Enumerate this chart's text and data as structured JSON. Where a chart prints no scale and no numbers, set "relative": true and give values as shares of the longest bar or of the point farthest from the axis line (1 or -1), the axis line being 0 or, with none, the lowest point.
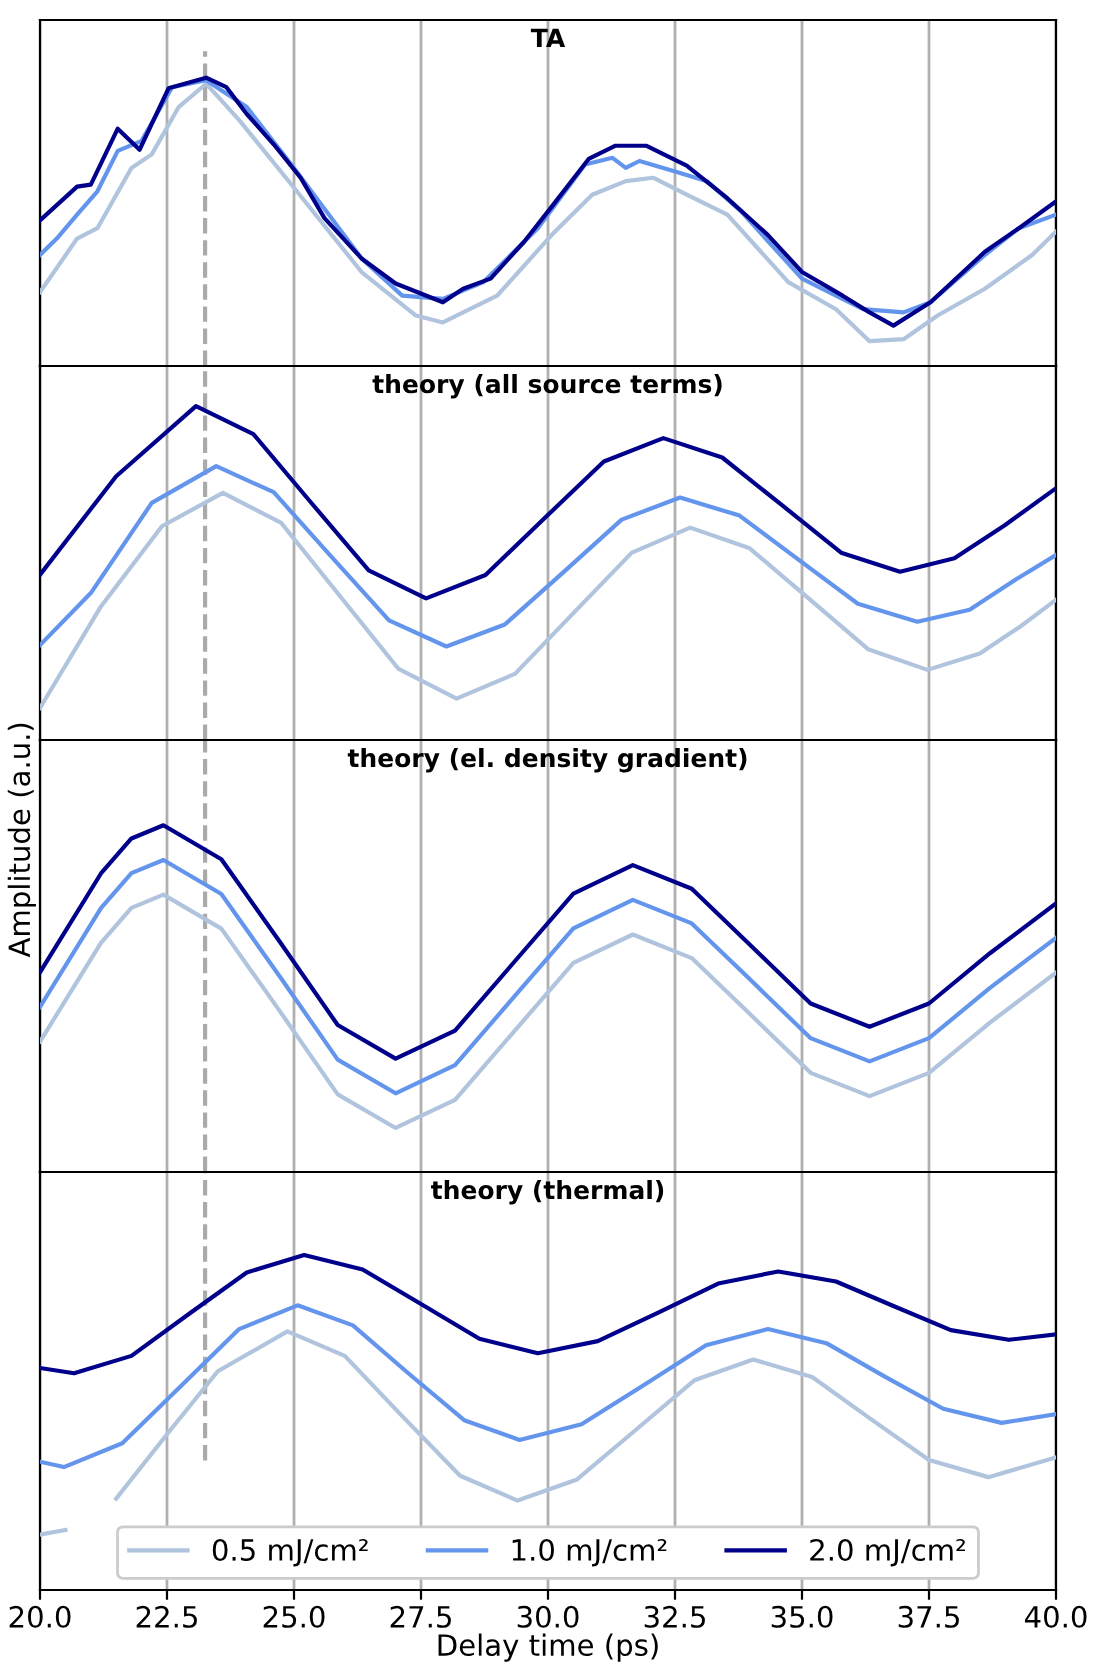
{
  "chart_data": [
    {
      "type": "line",
      "title": "TA",
      "relative": true,
      "xlim": [
        20,
        40
      ],
      "xticks": [
        {
          "value": 20,
          "label": null
        },
        {
          "value": 22.5,
          "label": null
        },
        {
          "value": 25,
          "label": null
        },
        {
          "value": 27.5,
          "label": null
        },
        {
          "value": 30,
          "label": null
        },
        {
          "value": 32.5,
          "label": null
        },
        {
          "value": 35,
          "label": null
        },
        {
          "value": 37.5,
          "label": null
        },
        {
          "value": 40,
          "label": null
        }
      ],
      "grid": "x",
      "tick_labels": false,
      "legend": false,
      "ref_lines": [
        {
          "axis": "x",
          "value": 23.25,
          "color": "#aaaaaa",
          "line_style": "dashed"
        }
      ],
      "series": [
        {
          "color": "#b0c4de",
          "x": [
            20.0,
            20.73,
            21.13,
            21.8,
            22.2,
            22.73,
            23.27,
            23.93,
            25.0,
            26.33,
            27.4,
            27.93,
            29.0,
            30.07,
            30.87,
            31.53,
            32.07,
            32.73,
            33.53,
            34.73,
            35.67,
            36.33,
            37.0,
            37.67,
            38.6,
            39.53,
            40.0
          ],
          "values": [
            0.256,
            0.442,
            0.478,
            0.687,
            0.734,
            0.898,
            0.979,
            0.851,
            0.618,
            0.326,
            0.175,
            0.151,
            0.244,
            0.454,
            0.594,
            0.641,
            0.653,
            0.594,
            0.525,
            0.291,
            0.197,
            0.086,
            0.093,
            0.175,
            0.268,
            0.385,
            0.466
          ]
        },
        {
          "color": "#6495ed",
          "x": [
            20.0,
            20.33,
            20.73,
            21.13,
            21.53,
            22.0,
            22.6,
            23.27,
            24.07,
            25.0,
            26.33,
            27.13,
            27.93,
            28.73,
            29.8,
            30.73,
            31.27,
            31.53,
            31.8,
            32.47,
            33.13,
            33.8,
            35.0,
            36.2,
            37.0,
            37.53,
            38.6,
            39.27,
            40.0
          ],
          "values": [
            0.385,
            0.442,
            0.525,
            0.606,
            0.746,
            0.781,
            0.967,
            0.991,
            0.898,
            0.687,
            0.373,
            0.244,
            0.233,
            0.291,
            0.478,
            0.699,
            0.722,
            0.687,
            0.711,
            0.676,
            0.641,
            0.536,
            0.303,
            0.197,
            0.186,
            0.221,
            0.385,
            0.478,
            0.525
          ]
        },
        {
          "color": "#00008b",
          "x": [
            20.0,
            20.73,
            21.0,
            21.53,
            21.96,
            22.53,
            23.27,
            23.67,
            24.07,
            24.6,
            25.13,
            25.6,
            26.33,
            27.0,
            27.93,
            28.33,
            28.87,
            29.53,
            30.07,
            30.8,
            31.33,
            31.93,
            32.73,
            33.53,
            34.33,
            35.0,
            35.8,
            36.33,
            36.8,
            37.53,
            38.6,
            39.27,
            40.0
          ],
          "values": [
            0.505,
            0.622,
            0.629,
            0.823,
            0.75,
            0.963,
            1.0,
            0.967,
            0.874,
            0.769,
            0.653,
            0.513,
            0.373,
            0.286,
            0.221,
            0.268,
            0.303,
            0.431,
            0.552,
            0.718,
            0.764,
            0.764,
            0.695,
            0.582,
            0.454,
            0.326,
            0.244,
            0.186,
            0.14,
            0.221,
            0.396,
            0.478,
            0.571
          ]
        }
      ]
    },
    {
      "type": "line",
      "title": "theory (all source terms)",
      "relative": true,
      "xlim": [
        20,
        40
      ],
      "xticks": [
        {
          "value": 20,
          "label": null
        },
        {
          "value": 22.5,
          "label": null
        },
        {
          "value": 25,
          "label": null
        },
        {
          "value": 27.5,
          "label": null
        },
        {
          "value": 30,
          "label": null
        },
        {
          "value": 32.5,
          "label": null
        },
        {
          "value": 35,
          "label": null
        },
        {
          "value": 37.5,
          "label": null
        },
        {
          "value": 40,
          "label": null
        }
      ],
      "grid": "x",
      "tick_labels": false,
      "legend": false,
      "ref_lines": [
        {
          "axis": "x",
          "value": 23.25,
          "color": "#aaaaaa",
          "line_style": "dashed"
        }
      ],
      "series": [
        {
          "color": "#b0c4de",
          "x": [
            20,
            21.2,
            22.4,
            23.6,
            24.75,
            25.9,
            27.05,
            28.2,
            29.35,
            30.5,
            31.65,
            32.8,
            33.97,
            35.13,
            36.3,
            37.47,
            38.5,
            39.3,
            40
          ],
          "values": [
            0.096,
            0.4,
            0.64,
            0.74,
            0.65,
            0.432,
            0.214,
            0.124,
            0.198,
            0.38,
            0.561,
            0.636,
            0.574,
            0.424,
            0.272,
            0.21,
            0.259,
            0.34,
            0.42
          ]
        },
        {
          "color": "#6495ed",
          "x": [
            20,
            21,
            22.2,
            23.47,
            24.6,
            25.73,
            26.87,
            28,
            29.15,
            30.3,
            31.45,
            32.6,
            33.77,
            34.93,
            36.1,
            37.27,
            38.3,
            39.2,
            40
          ],
          "values": [
            0.284,
            0.44,
            0.71,
            0.82,
            0.742,
            0.55,
            0.358,
            0.28,
            0.346,
            0.502,
            0.66,
            0.726,
            0.672,
            0.54,
            0.408,
            0.354,
            0.39,
            0.48,
            0.554
          ]
        },
        {
          "color": "#00008b",
          "x": [
            20,
            21.5,
            23.07,
            24.2,
            25.33,
            26.47,
            27.6,
            28.77,
            29.93,
            31.1,
            32.27,
            33.43,
            34.6,
            35.77,
            36.93,
            38,
            39,
            40
          ],
          "values": [
            0.495,
            0.79,
            1.0,
            0.916,
            0.712,
            0.508,
            0.424,
            0.494,
            0.664,
            0.834,
            0.904,
            0.846,
            0.704,
            0.561,
            0.504,
            0.544,
            0.644,
            0.754
          ]
        }
      ]
    },
    {
      "type": "line",
      "title": "theory (el. density gradient)",
      "ylabel": "Amplitude (a.u.)",
      "relative": true,
      "xlim": [
        20,
        40
      ],
      "xticks": [
        {
          "value": 20,
          "label": null
        },
        {
          "value": 22.5,
          "label": null
        },
        {
          "value": 25,
          "label": null
        },
        {
          "value": 27.5,
          "label": null
        },
        {
          "value": 30,
          "label": null
        },
        {
          "value": 32.5,
          "label": null
        },
        {
          "value": 35,
          "label": null
        },
        {
          "value": 37.5,
          "label": null
        },
        {
          "value": 40,
          "label": null
        }
      ],
      "grid": "x",
      "tick_labels": false,
      "legend": false,
      "ref_lines": [
        {
          "axis": "x",
          "value": 23.25,
          "color": "#aaaaaa",
          "line_style": "dashed"
        }
      ],
      "series": [
        {
          "color": "#b0c4de",
          "x": [
            20,
            21.2,
            21.8,
            22.43,
            23.57,
            24.72,
            25.86,
            27.0,
            28.17,
            29.33,
            30.5,
            31.67,
            32.83,
            34.0,
            35.17,
            36.33,
            37.5,
            38.7,
            40
          ],
          "values": [
            0.376,
            0.661,
            0.762,
            0.8,
            0.702,
            0.464,
            0.224,
            0.127,
            0.208,
            0.405,
            0.603,
            0.685,
            0.617,
            0.452,
            0.286,
            0.219,
            0.286,
            0.431,
            0.575
          ]
        },
        {
          "color": "#6495ed",
          "x": [
            20,
            21.2,
            21.8,
            22.43,
            23.57,
            24.72,
            25.86,
            27.0,
            28.17,
            29.33,
            30.5,
            31.67,
            32.83,
            34.0,
            35.17,
            36.33,
            37.5,
            38.7,
            40
          ],
          "values": [
            0.476,
            0.761,
            0.862,
            0.9,
            0.802,
            0.564,
            0.324,
            0.227,
            0.308,
            0.505,
            0.703,
            0.785,
            0.717,
            0.552,
            0.386,
            0.319,
            0.386,
            0.531,
            0.675
          ]
        },
        {
          "color": "#00008b",
          "x": [
            20,
            21.2,
            21.8,
            22.43,
            23.57,
            24.72,
            25.86,
            27.0,
            28.17,
            29.33,
            30.5,
            31.67,
            32.83,
            34.0,
            35.17,
            36.33,
            37.5,
            38.7,
            40
          ],
          "values": [
            0.576,
            0.861,
            0.962,
            1.0,
            0.902,
            0.664,
            0.424,
            0.327,
            0.408,
            0.605,
            0.803,
            0.885,
            0.817,
            0.652,
            0.486,
            0.419,
            0.486,
            0.631,
            0.775
          ]
        }
      ]
    },
    {
      "type": "line",
      "title": "theory (thermal)",
      "xlabel": "Delay time (ps)",
      "relative": true,
      "xlim": [
        20,
        40
      ],
      "xticks": [
        {
          "value": 20,
          "label": "20.0"
        },
        {
          "value": 22.5,
          "label": "22.5"
        },
        {
          "value": 25,
          "label": "25.0"
        },
        {
          "value": 27.5,
          "label": "27.5"
        },
        {
          "value": 30,
          "label": "30.0"
        },
        {
          "value": 32.5,
          "label": "32.5"
        },
        {
          "value": 35,
          "label": "35.0"
        },
        {
          "value": 37.5,
          "label": "37.5"
        },
        {
          "value": 40,
          "label": "40.0"
        }
      ],
      "grid": "x",
      "tick_labels": "x",
      "legend": "bottom",
      "ref_lines": [
        {
          "axis": "x",
          "value": 23.25,
          "color": "#aaaaaa",
          "line_style": "dashed"
        }
      ],
      "series": [
        {
          "name": "0.5 mJ/cm²",
          "color": "#b0c4de",
          "x": [
            20,
            20.5,
            21.0,
            21.5,
            22.5,
            23.5,
            24.87,
            26.0,
            27.13,
            28.27,
            29.4,
            30.56,
            31.72,
            32.88,
            34.04,
            35.2,
            36.35,
            37.5,
            38.67,
            40
          ],
          "values": [
            0.165,
            0.179,
            null,
            0.273,
            0.465,
            0.653,
            0.772,
            0.699,
            0.519,
            0.341,
            0.267,
            0.329,
            0.477,
            0.626,
            0.688,
            0.636,
            0.511,
            0.388,
            0.337,
            0.396
          ]
        },
        {
          "name": "1.0 mJ/cm²",
          "color": "#6495ed",
          "x": [
            20,
            20.47,
            21.62,
            22.77,
            23.92,
            25.07,
            26.16,
            27.25,
            28.35,
            29.44,
            30.66,
            31.89,
            33.11,
            34.33,
            35.48,
            36.63,
            37.78,
            38.93,
            40
          ],
          "values": [
            0.383,
            0.367,
            0.438,
            0.608,
            0.779,
            0.85,
            0.79,
            0.647,
            0.507,
            0.448,
            0.495,
            0.612,
            0.731,
            0.779,
            0.737,
            0.637,
            0.541,
            0.499,
            0.525
          ]
        },
        {
          "name": "2.0 mJ/cm²",
          "color": "#00008b",
          "x": [
            20,
            20.67,
            21.8,
            22.93,
            24.07,
            25.2,
            26.35,
            27.5,
            28.65,
            29.8,
            30.98,
            32.17,
            33.35,
            34.53,
            35.67,
            36.8,
            37.93,
            39.07,
            40
          ],
          "values": [
            0.663,
            0.647,
            0.699,
            0.824,
            0.948,
            1.0,
            0.957,
            0.854,
            0.75,
            0.707,
            0.743,
            0.828,
            0.915,
            0.951,
            0.921,
            0.848,
            0.776,
            0.747,
            0.763
          ]
        }
      ]
    }
  ]
}
